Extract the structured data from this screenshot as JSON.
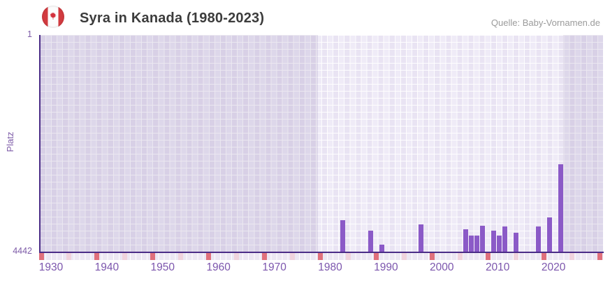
{
  "header": {
    "title": "Syra in Kanada (1980-2023)",
    "source": "Quelle: Baby-Vornamen.de"
  },
  "chart_data": {
    "type": "bar",
    "title": "Syra in Kanada (1980-2023)",
    "ylabel": "Platz",
    "xlabel": "",
    "legend": "none",
    "y_axis": {
      "top_tick": "1",
      "bottom_tick": "4442",
      "min": 1,
      "max": 4442,
      "inverted": true
    },
    "x_axis": {
      "tick_years": [
        1930,
        1940,
        1950,
        1960,
        1970,
        1980,
        1990,
        2000,
        2010,
        2020
      ],
      "range_start": 1928,
      "range_end": 2028
    },
    "series": [
      {
        "name": "Platz",
        "color": "#8b5ac7",
        "points": [
          {
            "year": 1982,
            "rank": 3797
          },
          {
            "year": 1987,
            "rank": 4012
          },
          {
            "year": 1989,
            "rank": 4298
          },
          {
            "year": 1996,
            "rank": 3883
          },
          {
            "year": 2004,
            "rank": 3983
          },
          {
            "year": 2005,
            "rank": 4112
          },
          {
            "year": 2006,
            "rank": 4112
          },
          {
            "year": 2007,
            "rank": 3912
          },
          {
            "year": 2009,
            "rank": 4012
          },
          {
            "year": 2010,
            "rank": 4112
          },
          {
            "year": 2011,
            "rank": 3926
          },
          {
            "year": 2013,
            "rank": 4055
          },
          {
            "year": 2017,
            "rank": 3926
          },
          {
            "year": 2019,
            "rank": 3740
          },
          {
            "year": 2021,
            "rank": 2651
          }
        ]
      }
    ],
    "no_data_markers": {
      "dark_color": "#e0707c",
      "light_color": "#f0d3dd",
      "years": [
        {
          "year": 1928,
          "shade": "dark"
        },
        {
          "year": 1933,
          "shade": "light"
        },
        {
          "year": 1938,
          "shade": "dark"
        },
        {
          "year": 1943,
          "shade": "light"
        },
        {
          "year": 1948,
          "shade": "dark"
        },
        {
          "year": 1953,
          "shade": "light"
        },
        {
          "year": 1958,
          "shade": "dark"
        },
        {
          "year": 1963,
          "shade": "light"
        },
        {
          "year": 1968,
          "shade": "dark"
        },
        {
          "year": 1973,
          "shade": "light"
        },
        {
          "year": 1978,
          "shade": "dark"
        },
        {
          "year": 1983,
          "shade": "light"
        },
        {
          "year": 1988,
          "shade": "dark"
        },
        {
          "year": 1993,
          "shade": "light"
        },
        {
          "year": 1998,
          "shade": "dark"
        },
        {
          "year": 2003,
          "shade": "light"
        },
        {
          "year": 2008,
          "shade": "dark"
        },
        {
          "year": 2013,
          "shade": "light"
        },
        {
          "year": 2018,
          "shade": "dark"
        },
        {
          "year": 2023,
          "shade": "light"
        },
        {
          "year": 2028,
          "shade": "dark"
        }
      ]
    },
    "plot_band": {
      "from_year": 1978,
      "to_year": 2021
    },
    "colors": {
      "bar": "#8b5ac7",
      "axis_line": "#4b2d87",
      "tick_label": "#7c56ad",
      "plot_band_light": "#efebf7",
      "outside_band_dark": "#dad3e8"
    }
  }
}
